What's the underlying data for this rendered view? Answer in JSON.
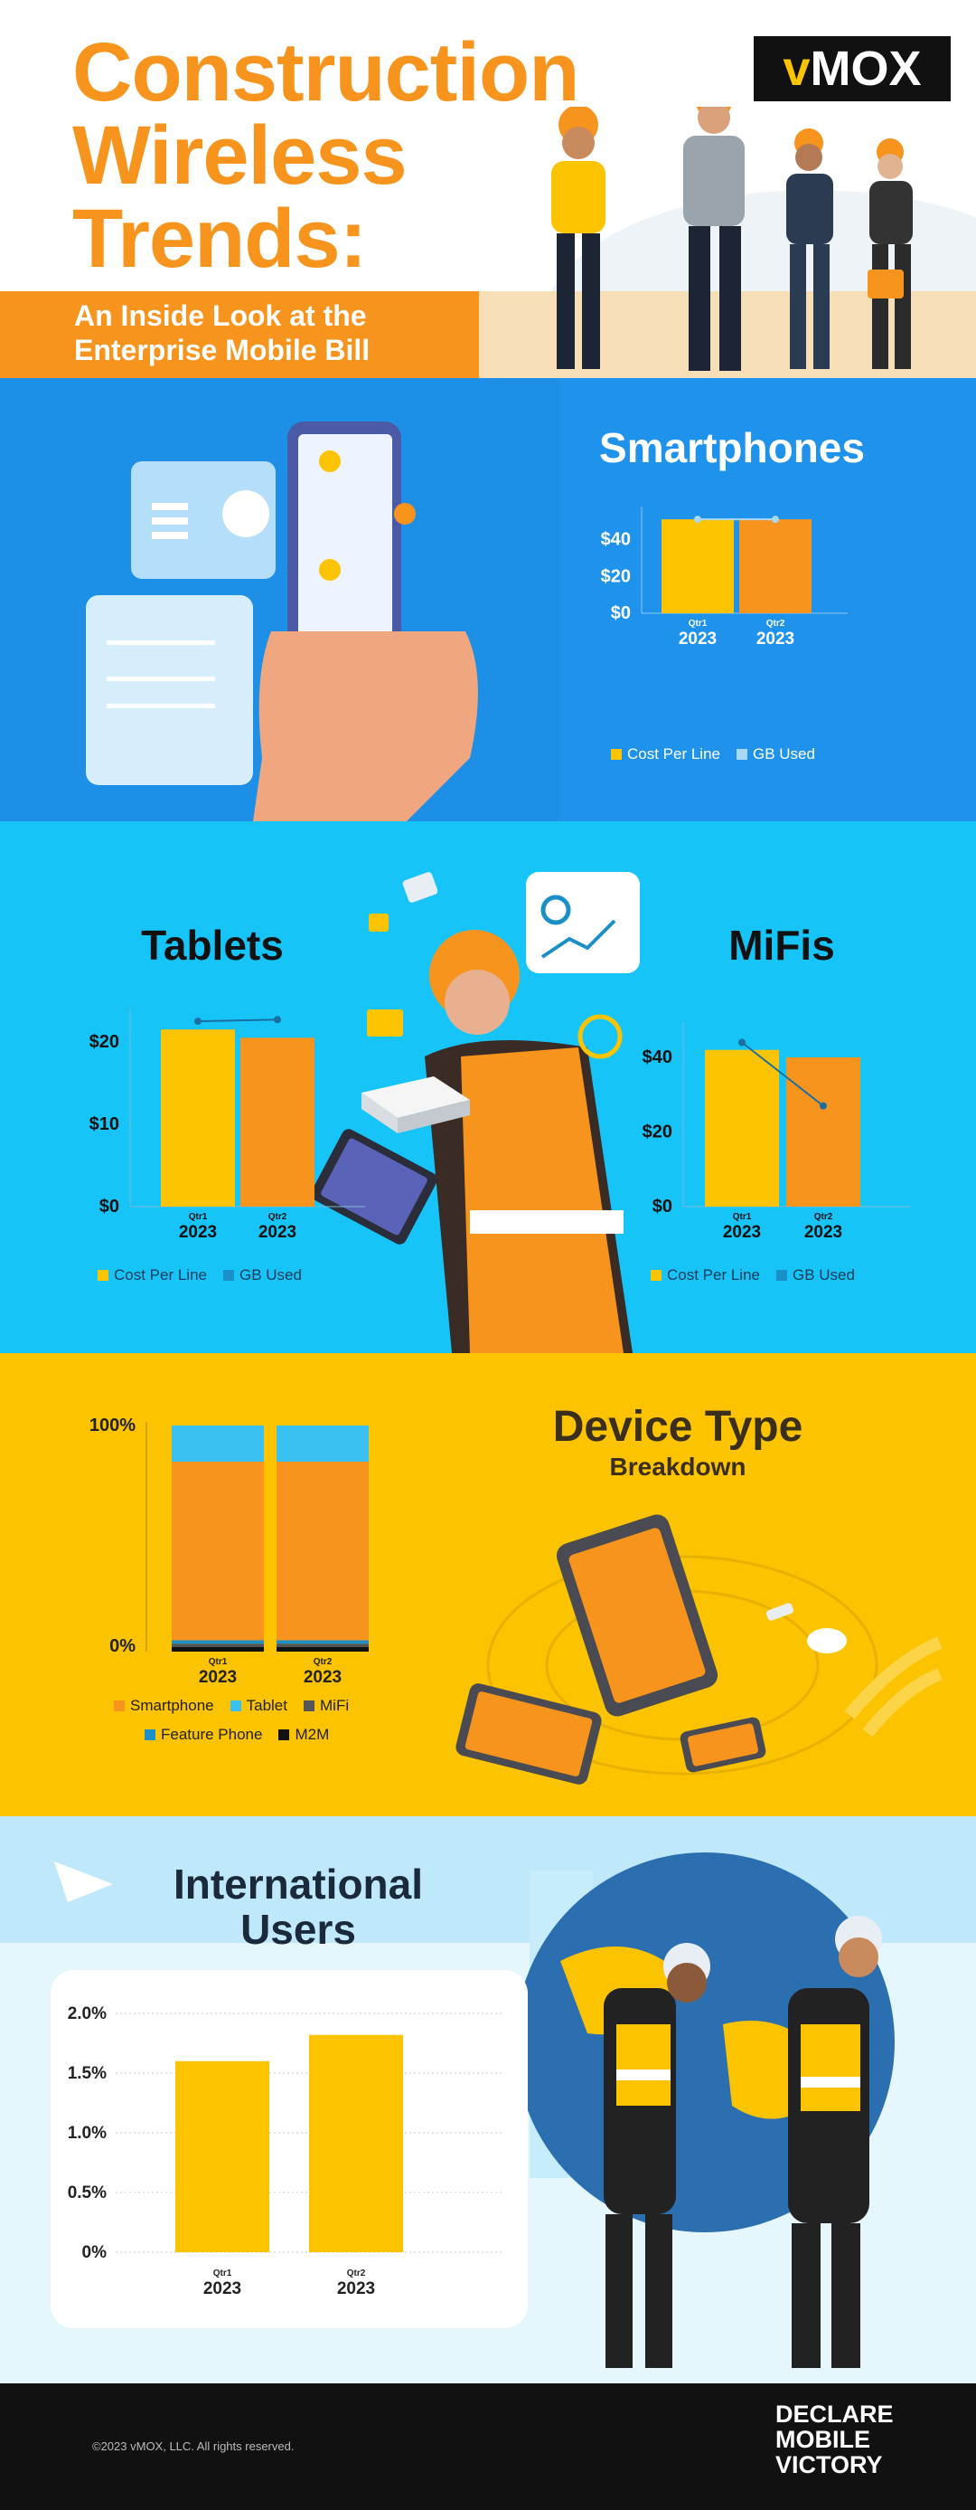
{
  "header": {
    "title_lines": [
      "Construction",
      "Wireless",
      "Trends:"
    ],
    "subtitle_lines": [
      "An Inside Look at the",
      "Enterprise Mobile Bill"
    ],
    "logo": {
      "v": "v",
      "rest": "MOX"
    }
  },
  "colors": {
    "orange": "#f7941d",
    "yellow": "#fcc300",
    "light_blue": "#6dd3f7",
    "mid_blue": "#1a8fc8",
    "dark": "#222222"
  },
  "smartphones": {
    "heading": "Smartphones",
    "legend": [
      {
        "label": "Cost Per Line",
        "color": "#fcc300"
      },
      {
        "label": "GB Used",
        "color": "#a9d8f5"
      }
    ],
    "chart_data": {
      "type": "bar",
      "categories": [
        {
          "q": "Qtr1",
          "y": "2023"
        },
        {
          "q": "Qtr2",
          "y": "2023"
        }
      ],
      "series": [
        {
          "name": "Cost Per Line",
          "values": [
            51,
            51
          ],
          "colors": [
            "#fcc300",
            "#f7941d"
          ]
        },
        {
          "name": "GB Used",
          "values": [
            51,
            51
          ]
        }
      ],
      "yticks": [
        "$0",
        "$20",
        "$40"
      ],
      "ylim": [
        0,
        55
      ]
    }
  },
  "tablets": {
    "heading": "Tablets",
    "legend": [
      {
        "label": "Cost Per Line",
        "color": "#fcc300"
      },
      {
        "label": "GB Used",
        "color": "#1a8fc8"
      }
    ],
    "chart_data": {
      "type": "bar",
      "categories": [
        {
          "q": "Qtr1",
          "y": "2023"
        },
        {
          "q": "Qtr2",
          "y": "2023"
        }
      ],
      "series": [
        {
          "name": "Cost Per Line",
          "values": [
            21.5,
            20.5
          ],
          "colors": [
            "#fcc300",
            "#f7941d"
          ]
        },
        {
          "name": "GB Used",
          "values": [
            22.5,
            22.7
          ]
        }
      ],
      "yticks": [
        "$0",
        "$10",
        "$20"
      ],
      "ylim": [
        0,
        23.5
      ]
    }
  },
  "mifis": {
    "heading": "MiFis",
    "legend": [
      {
        "label": "Cost Per Line",
        "color": "#fcc300"
      },
      {
        "label": "GB Used",
        "color": "#1a8fc8"
      }
    ],
    "chart_data": {
      "type": "bar",
      "categories": [
        {
          "q": "Qtr1",
          "y": "2023"
        },
        {
          "q": "Qtr2",
          "y": "2023"
        }
      ],
      "series": [
        {
          "name": "Cost Per Line",
          "values": [
            42,
            40
          ],
          "colors": [
            "#fcc300",
            "#f7941d"
          ]
        },
        {
          "name": "GB Used",
          "values": [
            44,
            27
          ]
        }
      ],
      "yticks": [
        "$0",
        "$20",
        "$40"
      ],
      "ylim": [
        0,
        48
      ]
    }
  },
  "device_type": {
    "heading": "Device Type",
    "subheading": "Breakdown",
    "legend_rows": [
      [
        {
          "label": "Smartphone",
          "color": "#f7941d"
        },
        {
          "label": "Tablet",
          "color": "#39c1f2"
        },
        {
          "label": "MiFi",
          "color": "#555555"
        }
      ],
      [
        {
          "label": "Feature Phone",
          "color": "#1a8fc8"
        },
        {
          "label": "M2M",
          "color": "#111111"
        }
      ]
    ],
    "chart_data": {
      "type": "bar",
      "stacked": true,
      "categories": [
        {
          "q": "Qtr1",
          "y": "2023"
        },
        {
          "q": "Qtr2",
          "y": "2023"
        }
      ],
      "series": [
        {
          "name": "M2M",
          "values": [
            2,
            2
          ],
          "color": "#111111"
        },
        {
          "name": "MiFi",
          "values": [
            1.5,
            1.5
          ],
          "color": "#555555"
        },
        {
          "name": "Feature Phone",
          "values": [
            1.5,
            1.5
          ],
          "color": "#1a8fc8"
        },
        {
          "name": "Smartphone",
          "values": [
            79,
            79
          ],
          "color": "#f7941d"
        },
        {
          "name": "Tablet",
          "values": [
            16,
            16
          ],
          "color": "#39c1f2"
        }
      ],
      "yticks": [
        "0%",
        "100%"
      ],
      "ylim": [
        0,
        100
      ]
    }
  },
  "international": {
    "heading_lines": [
      "International",
      "Users"
    ],
    "chart_data": {
      "type": "bar",
      "categories": [
        {
          "q": "Qtr1",
          "y": "2023"
        },
        {
          "q": "Qtr2",
          "y": "2023"
        }
      ],
      "series": [
        {
          "values": [
            1.6,
            1.82
          ],
          "color": "#fcc300"
        }
      ],
      "yticks": [
        "0%",
        "0.5%",
        "1.0%",
        "1.5%",
        "2.0%"
      ],
      "ylim": [
        0,
        2.0
      ]
    }
  },
  "footer": {
    "copyright": "©2023 vMOX, LLC. All rights reserved.",
    "tagline": [
      "DECLARE",
      "MOBILE",
      "VICTORY"
    ]
  }
}
